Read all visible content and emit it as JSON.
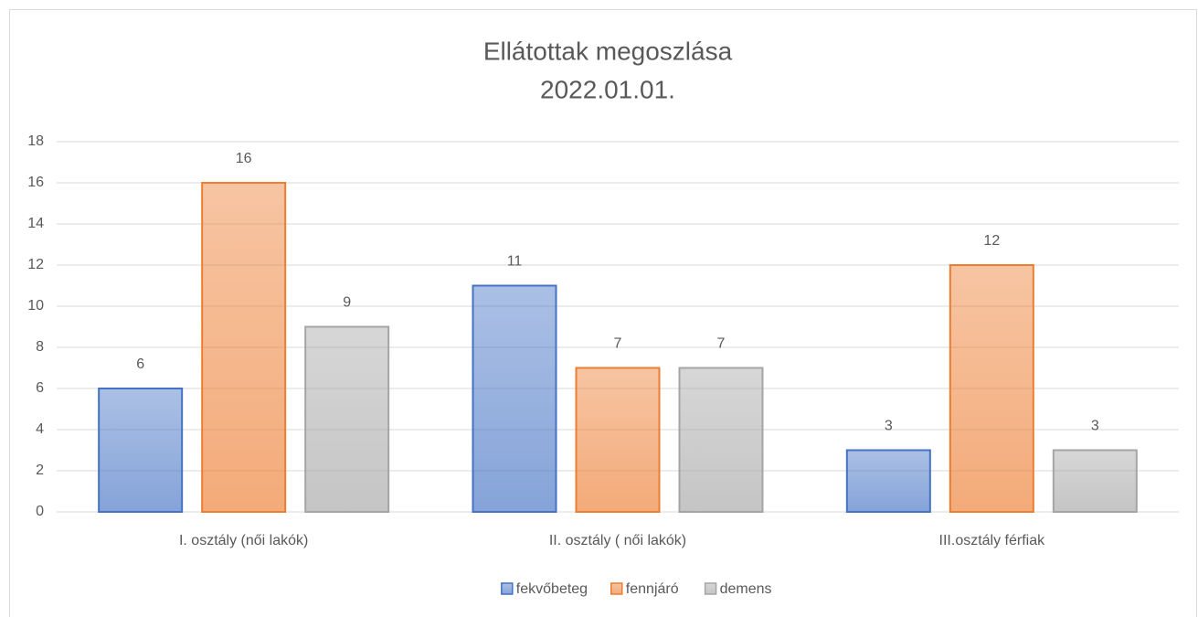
{
  "chart_data": {
    "type": "bar",
    "title": "Ellátottak megoszlása",
    "subtitle": "2022.01.01.",
    "categories": [
      "I. osztály (női lakók)",
      "II. osztály ( női lakók)",
      "III.osztály férfiak"
    ],
    "series": [
      {
        "name": "fekvőbeteg",
        "color": "#4472c4",
        "values": [
          6,
          11,
          3
        ]
      },
      {
        "name": "fennjáró",
        "color": "#ed7d31",
        "values": [
          16,
          7,
          12
        ]
      },
      {
        "name": "demens",
        "color": "#a5a5a5",
        "values": [
          9,
          7,
          3
        ]
      }
    ],
    "ylim": [
      0,
      18
    ],
    "yticks": [
      0,
      2,
      4,
      6,
      8,
      10,
      12,
      14,
      16,
      18
    ],
    "grid": true,
    "legend": "bottom"
  }
}
